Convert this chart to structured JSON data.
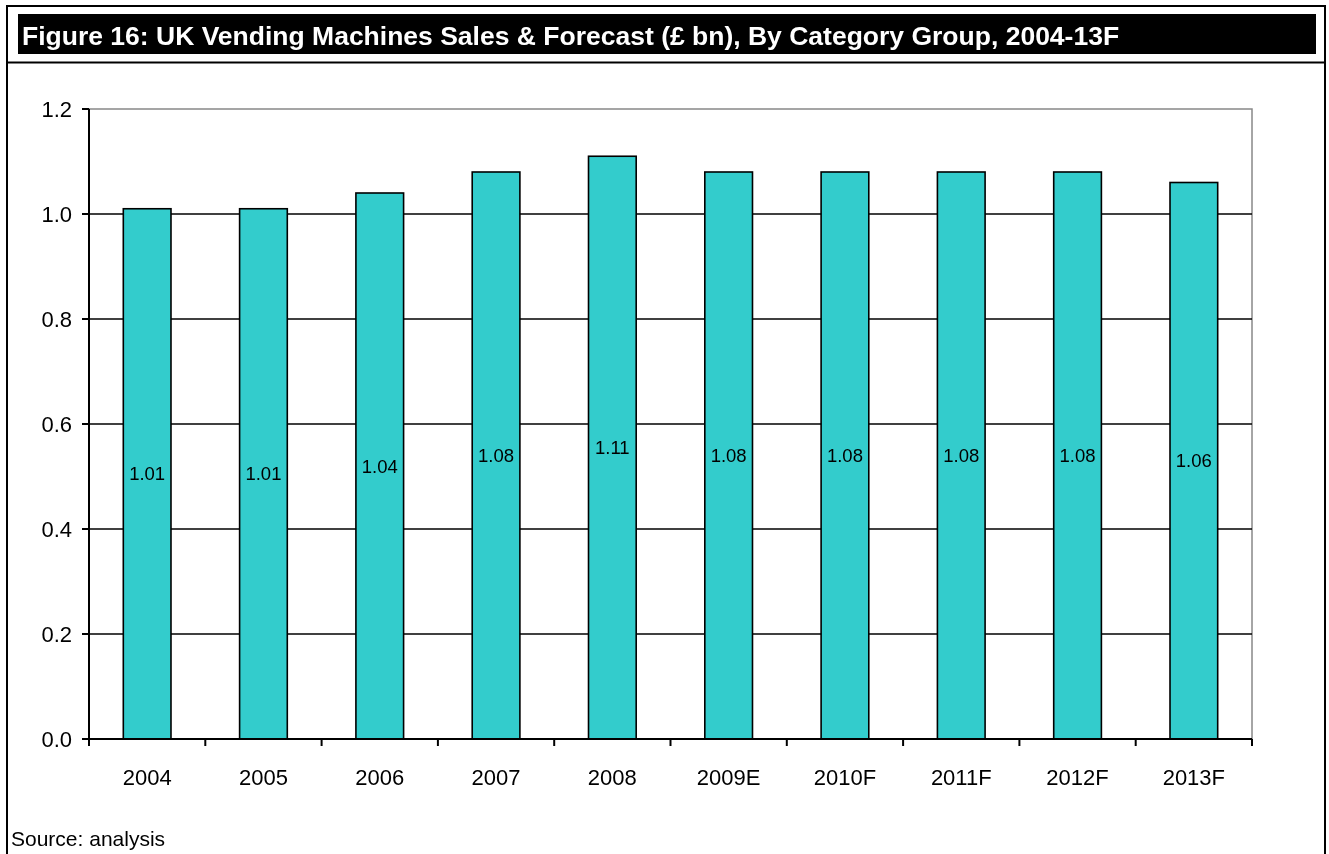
{
  "chart_data": {
    "type": "bar",
    "title": "Figure 16: UK Vending Machines Sales & Forecast (£ bn), By Category Group, 2004-13F",
    "categories": [
      "2004",
      "2005",
      "2006",
      "2007",
      "2008",
      "2009E",
      "2010F",
      "2011F",
      "2012F",
      "2013F"
    ],
    "values": [
      1.01,
      1.01,
      1.04,
      1.08,
      1.11,
      1.08,
      1.08,
      1.08,
      1.08,
      1.06
    ],
    "color": "#33cccc",
    "ylim": [
      0,
      1.2
    ],
    "yticks": [
      {
        "value": 0,
        "label": "0.0"
      },
      0.2,
      0.4,
      0.6,
      0.8,
      {
        "value": 1,
        "label": "1.0"
      },
      1.2
    ],
    "grid": "y",
    "data_labels": true,
    "annotations": [
      "Source: analysis"
    ]
  }
}
